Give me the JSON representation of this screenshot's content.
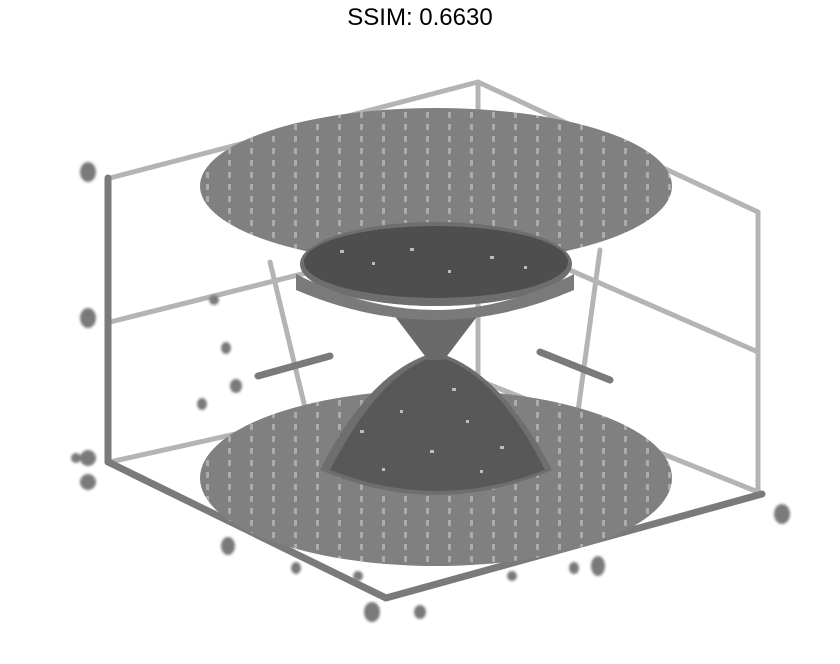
{
  "header": {
    "title": "SSIM: 0.6630"
  },
  "figure": {
    "subject": "3d-double-cone-surface-plot",
    "colors": {
      "surface": "#808080",
      "surface_dark": "#6e6e6e",
      "axis_light": "#b4b4b4",
      "axis_dark": "#7a7a7a",
      "noise_dark": "#3a3a3a",
      "noise_light": "#d8d8d8"
    }
  }
}
